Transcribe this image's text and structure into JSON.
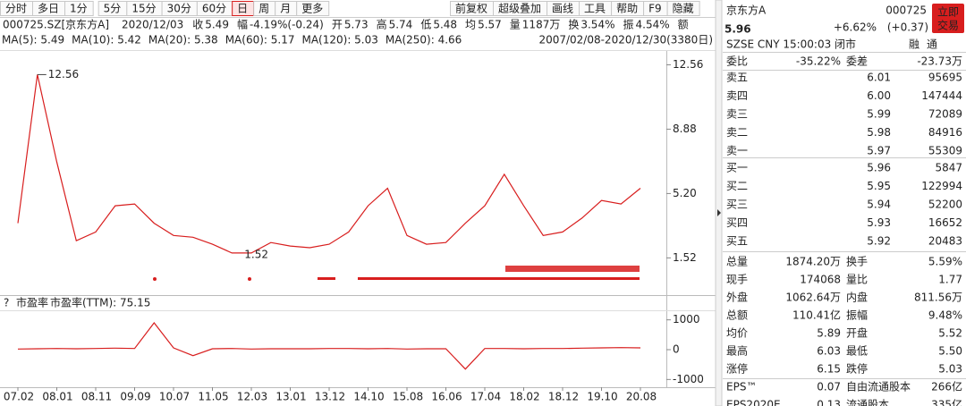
{
  "toolbar": {
    "periods": [
      "分时",
      "多日",
      "1分",
      "5分",
      "15分",
      "30分",
      "60分",
      "日",
      "周",
      "月",
      "更多"
    ],
    "tools": [
      "前复权",
      "超级叠加",
      "画线",
      "工具",
      "帮助",
      "F9",
      "隐藏"
    ]
  },
  "quote_bar": {
    "symbol": "000725.SZ[京东方A]",
    "date": "2020/12/03",
    "fields": [
      {
        "label": "收",
        "value": "5.49",
        "color": "#119911"
      },
      {
        "label": "幅",
        "value": "-4.19%(-0.24)",
        "color": "#119911"
      },
      {
        "label": "开",
        "value": "5.73",
        "color": "#d81e1e"
      },
      {
        "label": "高",
        "value": "5.74",
        "color": "#d81e1e"
      },
      {
        "label": "低",
        "value": "5.48",
        "color": "#119911"
      },
      {
        "label": "均",
        "value": "5.57",
        "color": "#119911"
      },
      {
        "label": "量",
        "value": "1187万",
        "color": "#222222"
      },
      {
        "label": "换",
        "value": "3.54%",
        "color": "#222222"
      },
      {
        "label": "振",
        "value": "4.54%",
        "color": "#222222"
      },
      {
        "label": "额",
        "value": "",
        "color": "#222222"
      }
    ]
  },
  "ma_bar": [
    {
      "label": "MA(5): 5.49",
      "color": "#c8307a"
    },
    {
      "label": "MA(10): 5.42",
      "color": "#b8860b"
    },
    {
      "label": "MA(20): 5.38",
      "color": "#2a8a2a"
    },
    {
      "label": "MA(60): 5.17",
      "color": "#20a8c8"
    },
    {
      "label": "MA(120): 5.03",
      "color": "#20a040"
    },
    {
      "label": "MA(250): 4.66",
      "color": "#a020c0"
    }
  ],
  "range": "2007/02/08-2020/12/30(3380日)",
  "chart_data": [
    {
      "type": "line",
      "color": "#d81e1e",
      "values": [
        3.5,
        12.0,
        7.0,
        2.5,
        3.0,
        4.5,
        4.6,
        3.5,
        2.8,
        2.7,
        2.3,
        1.8,
        1.8,
        2.4,
        2.2,
        2.1,
        2.3,
        3.0,
        4.5,
        5.5,
        2.8,
        2.3,
        2.4,
        3.5,
        4.5,
        6.3,
        4.5,
        2.8,
        3.0,
        3.8,
        4.8,
        4.6,
        5.5
      ],
      "ylim": [
        -0.2,
        13.3
      ],
      "yticks": [
        1.52,
        {
          "value": 5.2,
          "label": "5.20"
        },
        8.88,
        12.56
      ],
      "annotations": [
        "12.56",
        "1.52"
      ]
    },
    {
      "type": "line",
      "title": "市盈率",
      "subtitle": "市盈率(TTM): 75.15",
      "color": "#d81e1e",
      "categories": [
        "07.02",
        null,
        "08.01",
        null,
        "08.11",
        null,
        "09.09",
        null,
        "10.07",
        null,
        "11.05",
        null,
        "12.03",
        null,
        "13.01",
        null,
        "13.12",
        null,
        "14.10",
        null,
        "15.08",
        null,
        "16.06",
        null,
        "17.04",
        null,
        "18.02",
        null,
        "18.12",
        null,
        "19.10",
        null,
        "20.08"
      ],
      "values": [
        20,
        30,
        40,
        30,
        40,
        50,
        40,
        900,
        60,
        -200,
        30,
        40,
        20,
        30,
        30,
        30,
        40,
        40,
        30,
        40,
        20,
        30,
        30,
        -650,
        40,
        40,
        30,
        40,
        40,
        50,
        60,
        70,
        60
      ],
      "ylim": [
        -1200,
        1260
      ],
      "yticks": [
        -1000,
        0,
        1000
      ]
    }
  ],
  "pe_help": "?",
  "quote": {
    "name": "京东方A",
    "code": "000725",
    "trade_button": [
      "立即",
      "交易"
    ],
    "price": "5.96",
    "change": "+6.62%",
    "change_abs": "(+0.37)",
    "status": "SZSE  CNY  15:00:03  闭市",
    "flags": [
      "融",
      "通"
    ]
  },
  "order_ratio": [
    {
      "label": "委比",
      "value": "-35.22%"
    },
    {
      "label": "委差",
      "value": "-23.73万"
    }
  ],
  "asks": [
    {
      "label": "卖五",
      "price": "6.01",
      "volume": "95695"
    },
    {
      "label": "卖四",
      "price": "6.00",
      "volume": "147444"
    },
    {
      "label": "卖三",
      "price": "5.99",
      "volume": "72089"
    },
    {
      "label": "卖二",
      "price": "5.98",
      "volume": "84916"
    },
    {
      "label": "卖一",
      "price": "5.97",
      "volume": "55309"
    }
  ],
  "bids": [
    {
      "label": "买一",
      "price": "5.96",
      "volume": "5847"
    },
    {
      "label": "买二",
      "price": "5.95",
      "volume": "122994"
    },
    {
      "label": "买三",
      "price": "5.94",
      "volume": "52200"
    },
    {
      "label": "买四",
      "price": "5.93",
      "volume": "16652"
    },
    {
      "label": "买五",
      "price": "5.92",
      "volume": "20483"
    }
  ],
  "stats": [
    [
      {
        "label": "总量",
        "value": "1874.20万",
        "color": "#222222"
      },
      {
        "label": "换手",
        "value": "5.59%",
        "color": "#222222"
      }
    ],
    [
      {
        "label": "现手",
        "value": "174068",
        "color": "#222222"
      },
      {
        "label": "量比",
        "value": "1.77",
        "color": "#222222"
      }
    ],
    [
      {
        "label": "外盘",
        "value": "1062.64万",
        "color": "#d81e1e"
      },
      {
        "label": "内盘",
        "value": "811.56万",
        "color": "#119911"
      }
    ],
    [
      {
        "label": "总额",
        "value": "110.41亿",
        "color": "#222222"
      },
      {
        "label": "振幅",
        "value": "9.48%",
        "color": "#222222"
      }
    ],
    [
      {
        "label": "均价",
        "value": "5.89",
        "color": "#d81e1e"
      },
      {
        "label": "开盘",
        "value": "5.52",
        "color": "#119911"
      }
    ],
    [
      {
        "label": "最高",
        "value": "6.03",
        "color": "#d81e1e"
      },
      {
        "label": "最低",
        "value": "5.50",
        "color": "#119911"
      }
    ],
    [
      {
        "label": "涨停",
        "value": "6.15",
        "color": "#d81e1e"
      },
      {
        "label": "跌停",
        "value": "5.03",
        "color": "#119911"
      }
    ],
    [
      {
        "label": "EPS™",
        "value": "0.07",
        "color": "#222222"
      },
      {
        "label": "自由流通股本",
        "value": "266亿",
        "color": "#222222"
      }
    ],
    [
      {
        "label": "EPS2020E",
        "value": "0.13",
        "color": "#222222"
      },
      {
        "label": "流通股本",
        "value": "335亿",
        "color": "#222222"
      }
    ]
  ]
}
